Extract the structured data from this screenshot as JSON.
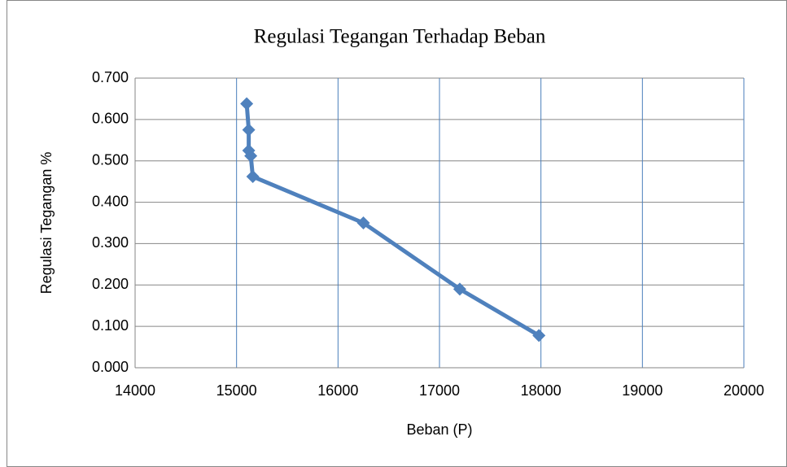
{
  "chart_data": {
    "type": "line",
    "title": "Regulasi Tegangan Terhadap Beban",
    "x_label": "Beban (P)",
    "y_label": "Regulasi Tegangan %",
    "x": [
      15100,
      15120,
      15120,
      15140,
      15160,
      16250,
      17200,
      17980
    ],
    "values": [
      0.638,
      0.575,
      0.525,
      0.512,
      0.462,
      0.35,
      0.19,
      0.078
    ],
    "color": "#4f81bd",
    "marker": "diamond",
    "xlim": [
      14000,
      20000
    ],
    "xticks": [
      14000,
      15000,
      16000,
      17000,
      18000,
      19000,
      20000
    ],
    "ylim": [
      0,
      0.7
    ],
    "yticks": [
      {
        "value": 0,
        "label": "0.000"
      },
      {
        "value": 0.1,
        "label": "0.100"
      },
      {
        "value": 0.2,
        "label": "0.200"
      },
      {
        "value": 0.3,
        "label": "0.300"
      },
      {
        "value": 0.4,
        "label": "0.400"
      },
      {
        "value": 0.5,
        "label": "0.500"
      },
      {
        "value": 0.6,
        "label": "0.600"
      },
      {
        "value": 0.7,
        "label": "0.700"
      }
    ],
    "grid": true
  }
}
